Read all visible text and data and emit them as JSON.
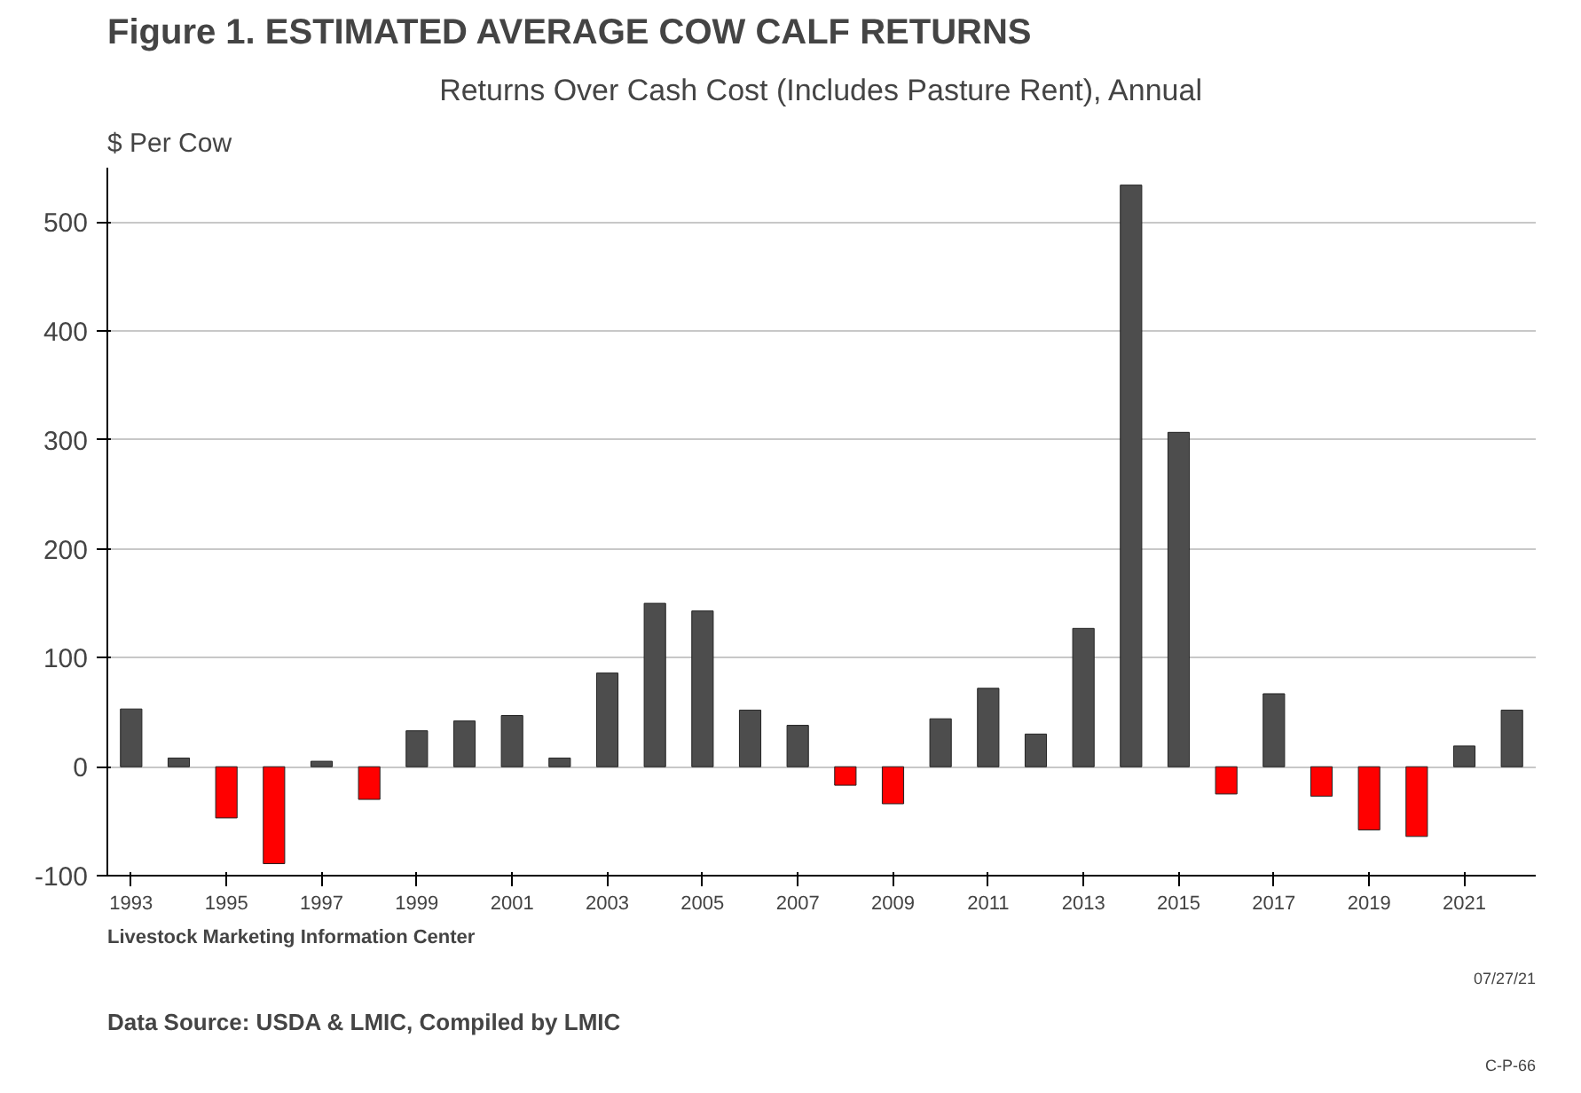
{
  "chart_data": {
    "type": "bar",
    "title": "Figure 1.    ESTIMATED AVERAGE COW CALF RETURNS",
    "subtitle": "Returns Over Cash Cost (Includes Pasture Rent), Annual",
    "ylabel": "$ Per Cow",
    "x": [
      1993,
      1994,
      1995,
      1996,
      1997,
      1998,
      1999,
      2000,
      2001,
      2002,
      2003,
      2004,
      2005,
      2006,
      2007,
      2008,
      2009,
      2010,
      2011,
      2012,
      2013,
      2014,
      2015,
      2016,
      2017,
      2018,
      2019,
      2020,
      2021,
      2022
    ],
    "values": [
      53,
      8,
      -47,
      -89,
      5,
      -30,
      33,
      42,
      47,
      8,
      86,
      150,
      143,
      52,
      38,
      -17,
      -34,
      44,
      72,
      30,
      127,
      534,
      307,
      -25,
      67,
      -27,
      -58,
      -64,
      19,
      52
    ],
    "colors": [
      "#4d4d4d",
      "#4d4d4d",
      "#ff0000",
      "#ff0000",
      "#4d4d4d",
      "#ff0000",
      "#4d4d4d",
      "#4d4d4d",
      "#4d4d4d",
      "#4d4d4d",
      "#4d4d4d",
      "#4d4d4d",
      "#4d4d4d",
      "#4d4d4d",
      "#4d4d4d",
      "#ff0000",
      "#ff0000",
      "#4d4d4d",
      "#4d4d4d",
      "#4d4d4d",
      "#4d4d4d",
      "#4d4d4d",
      "#4d4d4d",
      "#ff0000",
      "#4d4d4d",
      "#ff0000",
      "#ff0000",
      "#ff0000",
      "#4d4d4d",
      "#4d4d4d"
    ],
    "xlim": [
      1992.5,
      2022.5
    ],
    "xticks": [
      1993,
      1995,
      1997,
      1999,
      2001,
      2003,
      2005,
      2007,
      2009,
      2011,
      2013,
      2015,
      2017,
      2019,
      2021
    ],
    "ylim": [
      -100,
      550
    ],
    "yticks": [
      -100,
      0,
      100,
      200,
      300,
      400,
      500
    ],
    "grid": "y",
    "annotations": [
      "Data Source:  USDA & LMIC, Compiled by LMIC",
      "Livestock Marketing Information Center",
      "C-P-66",
      "07/27/21"
    ]
  }
}
